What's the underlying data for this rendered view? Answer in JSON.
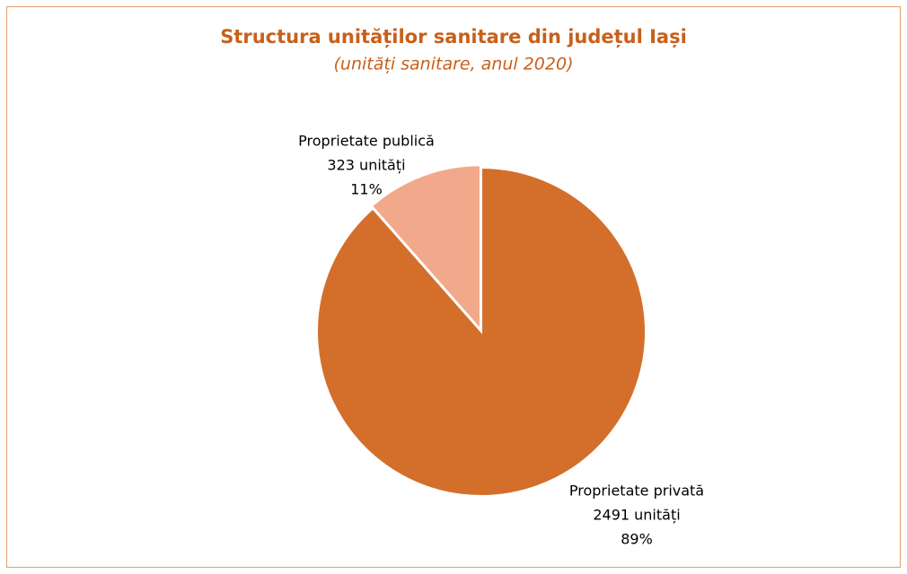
{
  "chart_data": {
    "type": "pie",
    "title": "Structura unităților sanitare din județul Iași",
    "subtitle": "(unități sanitare, anul 2020)",
    "categories": [
      "Proprietate privată",
      "Proprietate publică"
    ],
    "values": [
      2491,
      323
    ],
    "value_labels": [
      "2491 unități",
      "323 unități"
    ],
    "percent_labels": [
      "89%",
      "11%"
    ],
    "colors": [
      "#d36f2b",
      "#f2a88a"
    ]
  }
}
